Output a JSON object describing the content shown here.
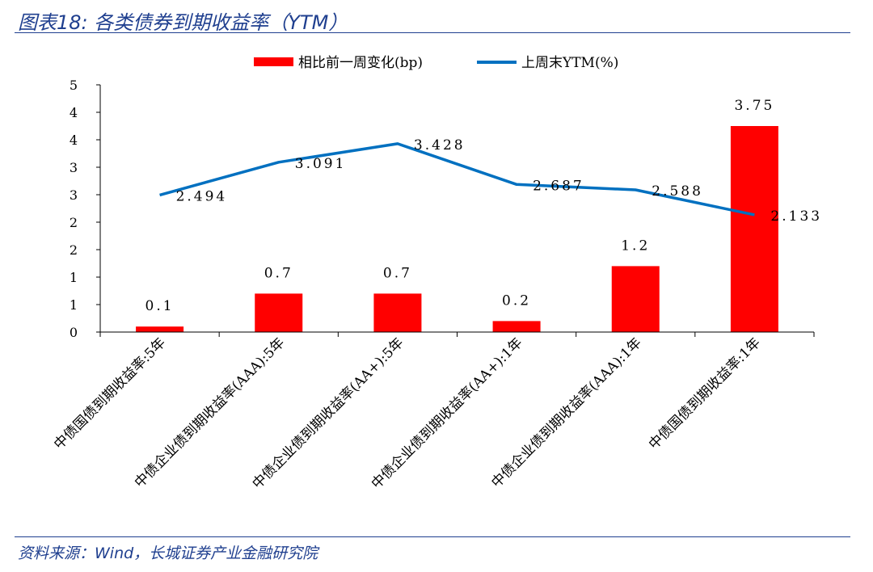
{
  "header": {
    "title": "图表18:  各类债券到期收益率（YTM）"
  },
  "footer": {
    "source": "资料来源：Wind，长城证券产业金融研究院"
  },
  "chart_data": {
    "type": "bar",
    "categories": [
      "中债国债到期收益率:5年",
      "中债企业债到期收益率(AAA):5年",
      "中债企业债到期收益率(AA+):5年",
      "中债企业债到期收益率(AA+):1年",
      "中债企业债到期收益率(AAA):1年",
      "中债国债到期收益率:1年"
    ],
    "y_tick_labels": [
      "0",
      "1",
      "1",
      "2",
      "2",
      "3",
      "3",
      "4",
      "4",
      "5"
    ],
    "ylim": [
      0,
      4.5
    ],
    "legend_position": "top",
    "grid": false,
    "series": [
      {
        "name": "相比前一周变化(bp)",
        "type": "bar",
        "color": "#ff0000",
        "values": [
          0.1,
          0.7,
          0.7,
          0.2,
          1.2,
          3.75
        ],
        "labels": [
          "0.1",
          "0.7",
          "0.7",
          "0.2",
          "1.2",
          "3.75"
        ]
      },
      {
        "name": "上周末YTM(%)",
        "type": "line",
        "color": "#0070c0",
        "values": [
          2.494,
          3.091,
          3.428,
          2.687,
          2.588,
          2.133
        ],
        "labels": [
          "2.494",
          "3.091",
          "3.428",
          "2.687",
          "2.588",
          "2.133"
        ]
      }
    ]
  }
}
